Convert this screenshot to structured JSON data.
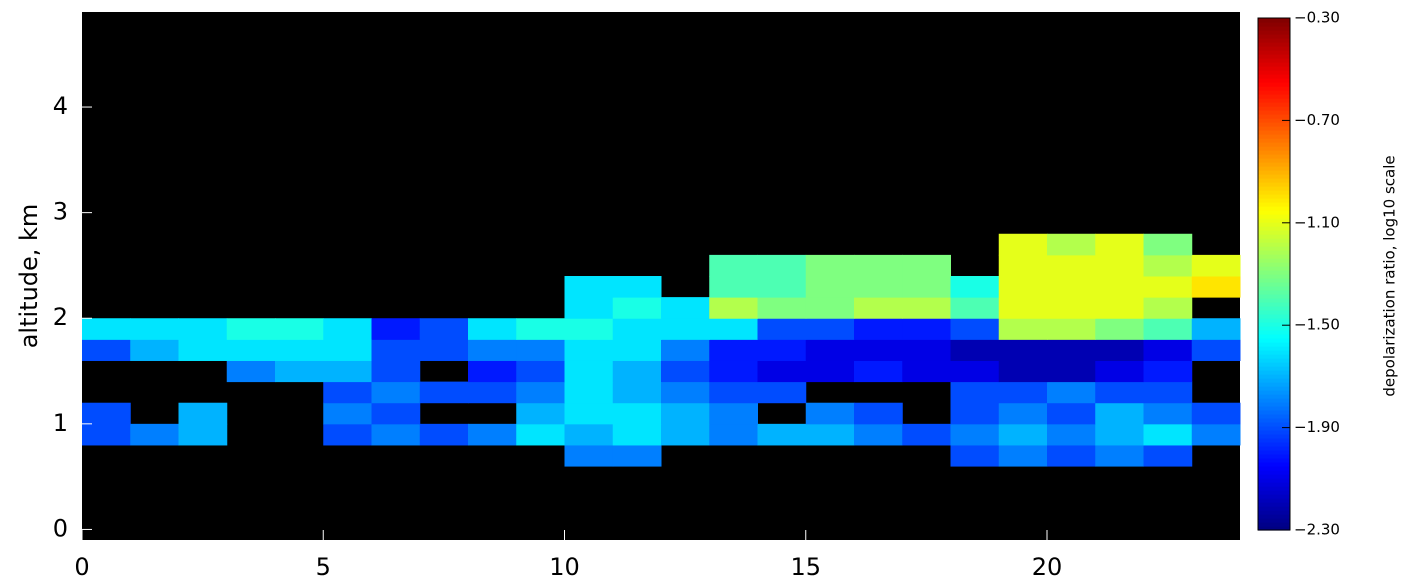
{
  "chart_data": {
    "type": "heatmap",
    "ylabel": "altitude, km",
    "xlim": [
      0,
      24
    ],
    "xticks": [
      0,
      5,
      10,
      15,
      20
    ],
    "ylim": [
      -0.1,
      4.9
    ],
    "yticks": [
      0,
      1,
      2,
      3,
      4
    ],
    "xbins": [
      0,
      1,
      2,
      3,
      4,
      5,
      6,
      7,
      8,
      9,
      10,
      11,
      12,
      13,
      14,
      15,
      16,
      17,
      18,
      19,
      20,
      21,
      22,
      23,
      24
    ],
    "ybins": [
      0.6,
      0.8,
      1.0,
      1.2,
      1.4,
      1.6,
      1.8,
      2.0,
      2.2,
      2.4,
      2.6,
      2.8
    ],
    "values": [
      [
        null,
        null,
        null,
        null,
        null,
        null,
        null,
        null,
        null,
        null,
        -1.8,
        -1.8,
        null,
        null,
        null,
        null,
        null,
        null,
        -1.9,
        -1.8,
        -1.9,
        -1.8,
        -1.9,
        null
      ],
      [
        -1.9,
        -1.8,
        -1.7,
        null,
        null,
        -1.9,
        -1.8,
        -1.9,
        -1.8,
        -1.6,
        -1.7,
        -1.6,
        -1.7,
        -1.8,
        -1.7,
        -1.7,
        -1.8,
        -1.9,
        -1.8,
        -1.7,
        -1.8,
        -1.7,
        -1.6,
        -1.8
      ],
      [
        -1.9,
        null,
        -1.7,
        null,
        null,
        -1.8,
        -1.9,
        null,
        null,
        -1.7,
        -1.6,
        -1.6,
        -1.7,
        -1.8,
        null,
        -1.8,
        -1.9,
        null,
        -1.9,
        -1.8,
        -1.9,
        -1.7,
        -1.8,
        -1.9
      ],
      [
        null,
        null,
        null,
        null,
        null,
        -1.9,
        -1.8,
        -1.9,
        -1.9,
        -1.8,
        -1.6,
        -1.7,
        -1.8,
        -1.9,
        -1.9,
        null,
        null,
        null,
        -1.9,
        -1.9,
        -1.8,
        -1.9,
        -1.9,
        null
      ],
      [
        null,
        null,
        null,
        -1.8,
        -1.7,
        -1.7,
        -1.9,
        null,
        -2.0,
        -1.9,
        -1.6,
        -1.7,
        -1.9,
        -2.0,
        -2.1,
        -2.1,
        -2.0,
        -2.1,
        -2.1,
        -2.2,
        -2.2,
        -2.1,
        -2.0,
        null
      ],
      [
        -1.9,
        -1.7,
        -1.6,
        -1.6,
        -1.6,
        -1.6,
        -1.9,
        -1.9,
        -1.8,
        -1.8,
        -1.6,
        -1.6,
        -1.8,
        -2.0,
        -2.0,
        -2.1,
        -2.1,
        -2.1,
        -2.2,
        -2.2,
        -2.2,
        -2.2,
        -2.1,
        -1.9
      ],
      [
        -1.6,
        -1.6,
        -1.6,
        -1.5,
        -1.5,
        -1.6,
        -2.0,
        -1.9,
        -1.6,
        -1.5,
        -1.5,
        -1.6,
        -1.6,
        -1.6,
        -1.9,
        -1.9,
        -2.0,
        -2.0,
        -1.9,
        -1.2,
        -1.2,
        -1.3,
        -1.4,
        -1.7
      ],
      [
        null,
        null,
        null,
        null,
        null,
        null,
        null,
        null,
        null,
        null,
        -1.6,
        -1.5,
        -1.6,
        -1.2,
        -1.3,
        -1.3,
        -1.2,
        -1.2,
        -1.4,
        -1.1,
        -1.1,
        -1.1,
        -1.2,
        null
      ],
      [
        null,
        null,
        null,
        null,
        null,
        null,
        null,
        null,
        null,
        null,
        -1.6,
        -1.6,
        null,
        -1.4,
        -1.4,
        -1.3,
        -1.3,
        -1.3,
        -1.5,
        -1.1,
        -1.1,
        -1.1,
        -1.1,
        -1.0
      ],
      [
        null,
        null,
        null,
        null,
        null,
        null,
        null,
        null,
        null,
        null,
        null,
        null,
        null,
        -1.4,
        -1.4,
        -1.3,
        -1.3,
        -1.3,
        null,
        -1.1,
        -1.1,
        -1.1,
        -1.2,
        -1.1
      ],
      [
        null,
        null,
        null,
        null,
        null,
        null,
        null,
        null,
        null,
        null,
        null,
        null,
        null,
        null,
        null,
        null,
        null,
        null,
        null,
        -1.1,
        -1.2,
        -1.1,
        -1.3,
        null
      ]
    ],
    "colormap": "jet",
    "clim": [
      -2.3,
      -0.3
    ],
    "colorbar_label": "depolarization ratio, log10 scale",
    "colorbar_ticks": [
      {
        "value": -0.3,
        "label": "−0.30"
      },
      {
        "value": -0.7,
        "label": "−0.70"
      },
      {
        "value": -1.1,
        "label": "−1.10"
      },
      {
        "value": -1.5,
        "label": "−1.50"
      },
      {
        "value": -1.9,
        "label": "−1.90"
      },
      {
        "value": -2.3,
        "label": "−2.30"
      }
    ]
  }
}
